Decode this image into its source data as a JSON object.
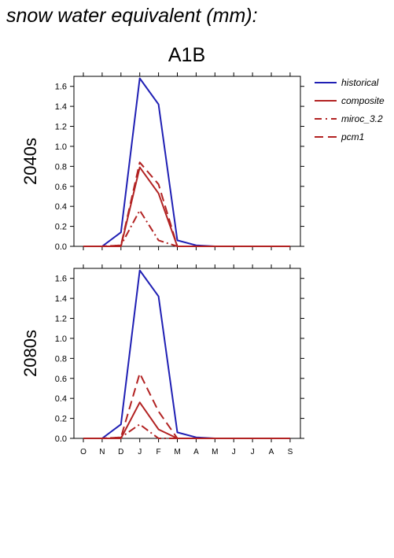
{
  "page": {
    "title": "snow water equivalent (mm):",
    "scenario": "A1B"
  },
  "colors": {
    "historical": "#1f1fb4",
    "composite": "#b22222",
    "miroc_3.2": "#b22222",
    "pcm1": "#b22222"
  },
  "legend_placement": "right-top",
  "chart_data": [
    {
      "type": "line",
      "row_label": "2040s",
      "categories": [
        "O",
        "N",
        "D",
        "J",
        "F",
        "M",
        "A",
        "M",
        "J",
        "J",
        "A",
        "S"
      ],
      "ylim": [
        0,
        1.7
      ],
      "yticks": [
        "0.0",
        "0.2",
        "0.4",
        "0.6",
        "0.8",
        "1.0",
        "1.2",
        "1.4",
        "1.6"
      ],
      "show_x_tick_labels": false,
      "series": [
        {
          "name": "historical",
          "style": "solid",
          "values": [
            0,
            0,
            0.14,
            1.68,
            1.42,
            0.06,
            0.01,
            0,
            0,
            0,
            0,
            0
          ]
        },
        {
          "name": "composite",
          "style": "solid",
          "values": [
            0,
            0,
            0,
            0.79,
            0.53,
            0,
            0,
            0,
            0,
            0,
            0,
            0
          ]
        },
        {
          "name": "miroc_3.2",
          "style": "dashdot",
          "values": [
            0,
            0,
            0.01,
            0.36,
            0.06,
            0,
            0,
            0,
            0,
            0,
            0,
            0
          ]
        },
        {
          "name": "pcm1",
          "style": "dash",
          "values": [
            0,
            0,
            0.01,
            0.84,
            0.62,
            0,
            0,
            0,
            0,
            0,
            0,
            0
          ]
        }
      ]
    },
    {
      "type": "line",
      "row_label": "2080s",
      "categories": [
        "O",
        "N",
        "D",
        "J",
        "F",
        "M",
        "A",
        "M",
        "J",
        "J",
        "A",
        "S"
      ],
      "ylim": [
        0,
        1.7
      ],
      "yticks": [
        "0.0",
        "0.2",
        "0.4",
        "0.6",
        "0.8",
        "1.0",
        "1.2",
        "1.4",
        "1.6"
      ],
      "show_x_tick_labels": true,
      "series": [
        {
          "name": "historical",
          "style": "solid",
          "values": [
            0,
            0,
            0.14,
            1.68,
            1.42,
            0.06,
            0.01,
            0,
            0,
            0,
            0,
            0
          ]
        },
        {
          "name": "composite",
          "style": "solid",
          "values": [
            0,
            0,
            0,
            0.36,
            0.09,
            0,
            0,
            0,
            0,
            0,
            0,
            0
          ]
        },
        {
          "name": "miroc_3.2",
          "style": "dashdot",
          "values": [
            0,
            0,
            0.01,
            0.14,
            0,
            0,
            0,
            0,
            0,
            0,
            0,
            0
          ]
        },
        {
          "name": "pcm1",
          "style": "dash",
          "values": [
            0,
            0,
            0.01,
            0.65,
            0.27,
            0,
            0,
            0,
            0,
            0,
            0,
            0
          ]
        }
      ]
    }
  ]
}
